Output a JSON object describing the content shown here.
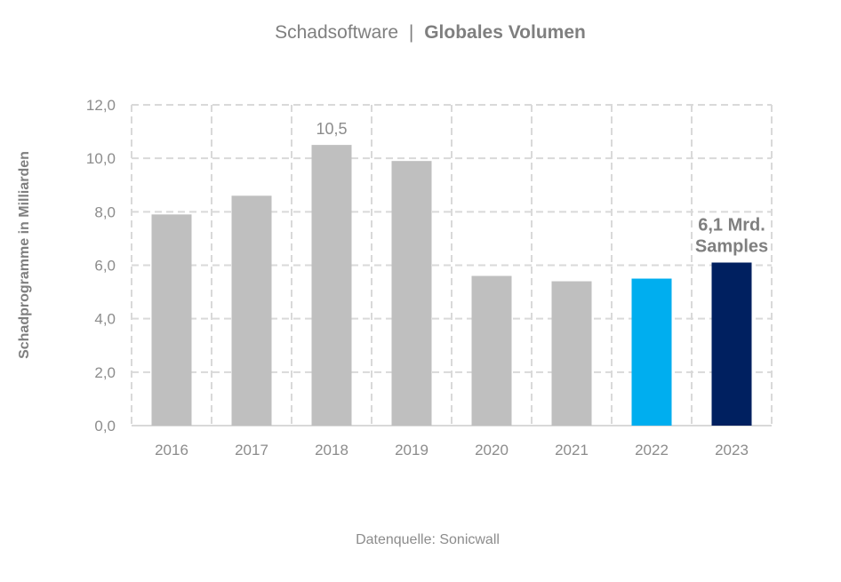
{
  "chart_data": {
    "type": "bar",
    "title_light": "Schadsoftware",
    "title_separator": "|",
    "title_bold": "Globales Volumen",
    "ylabel": "Schadprogramme in Milliarden",
    "xlabel": "",
    "categories": [
      "2016",
      "2017",
      "2018",
      "2019",
      "2020",
      "2021",
      "2022",
      "2023"
    ],
    "values": [
      7.9,
      8.6,
      10.5,
      9.9,
      5.6,
      5.4,
      5.5,
      6.1
    ],
    "colors": [
      "#bfbfbf",
      "#bfbfbf",
      "#bfbfbf",
      "#bfbfbf",
      "#bfbfbf",
      "#bfbfbf",
      "#00aeef",
      "#002060"
    ],
    "ylim": [
      0,
      12
    ],
    "yticks": [
      0,
      2,
      4,
      6,
      8,
      10,
      12
    ],
    "ytick_labels": [
      "0,0",
      "2,0",
      "4,0",
      "6,0",
      "8,0",
      "10,0",
      "12,0"
    ],
    "grid": true,
    "grid_style": "dashed",
    "annotations": [
      {
        "category": "2018",
        "lines": [
          "10,5"
        ],
        "bold": false
      },
      {
        "category": "2023",
        "lines": [
          "6,1 Mrd.",
          "Samples"
        ],
        "bold": true
      }
    ],
    "source": "Datenquelle: Sonicwall"
  }
}
